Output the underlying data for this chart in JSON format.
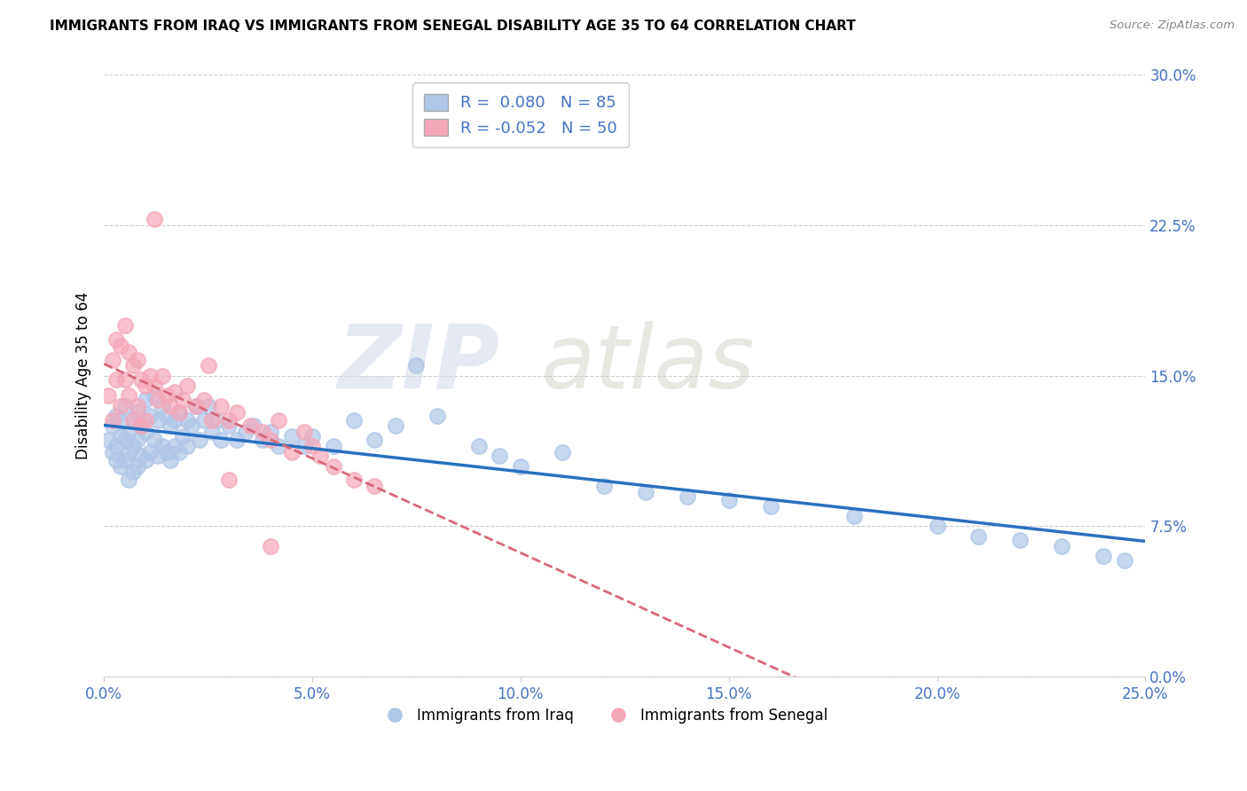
{
  "title": "IMMIGRANTS FROM IRAQ VS IMMIGRANTS FROM SENEGAL DISABILITY AGE 35 TO 64 CORRELATION CHART",
  "source": "Source: ZipAtlas.com",
  "ylabel": "Disability Age 35 to 64",
  "xlabel_ticks": [
    "0.0%",
    "5.0%",
    "10.0%",
    "15.0%",
    "20.0%",
    "25.0%"
  ],
  "xlabel_vals": [
    0.0,
    0.05,
    0.1,
    0.15,
    0.2,
    0.25
  ],
  "ylabel_ticks": [
    "0.0%",
    "7.5%",
    "15.0%",
    "22.5%",
    "30.0%"
  ],
  "ylabel_vals": [
    0.0,
    0.075,
    0.15,
    0.225,
    0.3
  ],
  "xlim": [
    0.0,
    0.25
  ],
  "ylim": [
    0.0,
    0.3
  ],
  "iraq_R": 0.08,
  "iraq_N": 85,
  "senegal_R": -0.052,
  "senegal_N": 50,
  "iraq_color": "#aec6e8",
  "senegal_color": "#f4a7b9",
  "iraq_line_color": "#2970c0",
  "senegal_line_color": "#d9687a",
  "watermark": "ZIPatlas",
  "iraq_x": [
    0.001,
    0.002,
    0.002,
    0.003,
    0.003,
    0.003,
    0.004,
    0.004,
    0.004,
    0.005,
    0.005,
    0.005,
    0.006,
    0.006,
    0.006,
    0.007,
    0.007,
    0.007,
    0.008,
    0.008,
    0.008,
    0.009,
    0.009,
    0.01,
    0.01,
    0.01,
    0.011,
    0.011,
    0.012,
    0.012,
    0.013,
    0.013,
    0.014,
    0.014,
    0.015,
    0.015,
    0.016,
    0.016,
    0.017,
    0.017,
    0.018,
    0.018,
    0.019,
    0.02,
    0.02,
    0.021,
    0.022,
    0.023,
    0.024,
    0.025,
    0.026,
    0.027,
    0.028,
    0.03,
    0.032,
    0.034,
    0.036,
    0.038,
    0.04,
    0.042,
    0.045,
    0.048,
    0.05,
    0.055,
    0.06,
    0.065,
    0.07,
    0.075,
    0.08,
    0.09,
    0.095,
    0.1,
    0.11,
    0.12,
    0.13,
    0.14,
    0.15,
    0.16,
    0.18,
    0.2,
    0.21,
    0.22,
    0.23,
    0.24,
    0.245
  ],
  "iraq_y": [
    0.118,
    0.125,
    0.112,
    0.13,
    0.115,
    0.108,
    0.128,
    0.12,
    0.105,
    0.135,
    0.118,
    0.108,
    0.122,
    0.112,
    0.098,
    0.128,
    0.115,
    0.102,
    0.132,
    0.118,
    0.105,
    0.125,
    0.11,
    0.138,
    0.122,
    0.108,
    0.13,
    0.112,
    0.14,
    0.118,
    0.128,
    0.11,
    0.135,
    0.115,
    0.13,
    0.112,
    0.125,
    0.108,
    0.128,
    0.115,
    0.132,
    0.112,
    0.12,
    0.128,
    0.115,
    0.125,
    0.135,
    0.118,
    0.128,
    0.135,
    0.122,
    0.128,
    0.118,
    0.125,
    0.118,
    0.122,
    0.125,
    0.118,
    0.122,
    0.115,
    0.12,
    0.115,
    0.12,
    0.115,
    0.128,
    0.118,
    0.125,
    0.155,
    0.13,
    0.115,
    0.11,
    0.105,
    0.112,
    0.095,
    0.092,
    0.09,
    0.088,
    0.085,
    0.08,
    0.075,
    0.07,
    0.068,
    0.065,
    0.06,
    0.058
  ],
  "senegal_x": [
    0.001,
    0.002,
    0.002,
    0.003,
    0.003,
    0.004,
    0.004,
    0.005,
    0.005,
    0.006,
    0.006,
    0.007,
    0.007,
    0.008,
    0.008,
    0.009,
    0.009,
    0.01,
    0.01,
    0.011,
    0.012,
    0.013,
    0.014,
    0.015,
    0.016,
    0.017,
    0.018,
    0.019,
    0.02,
    0.022,
    0.024,
    0.026,
    0.028,
    0.03,
    0.032,
    0.035,
    0.038,
    0.04,
    0.042,
    0.045,
    0.048,
    0.05,
    0.052,
    0.055,
    0.06,
    0.065,
    0.012,
    0.025,
    0.03,
    0.04
  ],
  "senegal_y": [
    0.14,
    0.158,
    0.128,
    0.168,
    0.148,
    0.165,
    0.135,
    0.175,
    0.148,
    0.162,
    0.14,
    0.155,
    0.128,
    0.158,
    0.135,
    0.148,
    0.125,
    0.145,
    0.128,
    0.15,
    0.145,
    0.138,
    0.15,
    0.14,
    0.135,
    0.142,
    0.132,
    0.138,
    0.145,
    0.135,
    0.138,
    0.128,
    0.135,
    0.128,
    0.132,
    0.125,
    0.122,
    0.118,
    0.128,
    0.112,
    0.122,
    0.115,
    0.11,
    0.105,
    0.098,
    0.095,
    0.228,
    0.155,
    0.098,
    0.065
  ]
}
